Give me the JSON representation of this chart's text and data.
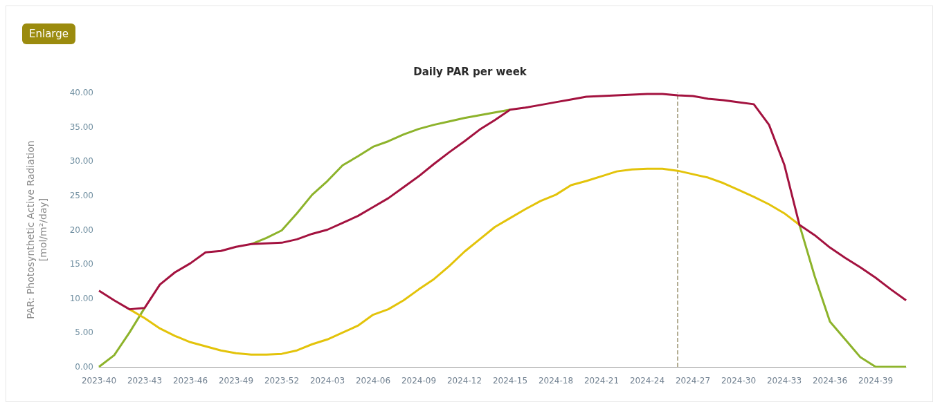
{
  "chart_data": {
    "type": "line",
    "title": "Daily PAR per week",
    "ylabel": "PAR: Photosynthetic Active Radiation\n[mol/m²/day]",
    "annotations": [
      "Enlarge"
    ],
    "categories": [
      "2023-40",
      null,
      null,
      "2023-43",
      null,
      null,
      "2023-46",
      null,
      null,
      "2023-49",
      null,
      null,
      "2023-52",
      null,
      null,
      "2024-03",
      null,
      null,
      "2024-06",
      null,
      null,
      "2024-09",
      null,
      null,
      "2024-12",
      null,
      null,
      "2024-15",
      null,
      null,
      "2024-18",
      null,
      null,
      "2024-21",
      null,
      null,
      "2024-24",
      null,
      null,
      "2024-27",
      null,
      null,
      "2024-30",
      null,
      null,
      "2024-33",
      null,
      null,
      "2024-36",
      null,
      null,
      "2024-39",
      null,
      null
    ],
    "series": [
      {
        "color": "#8db32b",
        "values": [
          0,
          1.7,
          5.0,
          8.6,
          null,
          null,
          null,
          null,
          null,
          null,
          17.9,
          18.8,
          19.9,
          22.4,
          25.1,
          27.1,
          29.4,
          30.7,
          32.1,
          32.9,
          33.9,
          34.7,
          35.3,
          35.8,
          36.3,
          36.7,
          37.1,
          37.5,
          null,
          null,
          null,
          null,
          null,
          null,
          null,
          null,
          null,
          null,
          null,
          null,
          null,
          null,
          null,
          null,
          null,
          null,
          20.7,
          13.2,
          6.6,
          4.0,
          1.4,
          0,
          0,
          0
        ]
      },
      {
        "color": "#e3c30a",
        "values": [
          null,
          null,
          8.4,
          7.1,
          5.6,
          4.5,
          3.6,
          3.0,
          2.4,
          2.0,
          1.8,
          1.8,
          1.9,
          2.4,
          3.3,
          4.0,
          5.0,
          6.0,
          7.6,
          8.4,
          9.7,
          11.3,
          12.8,
          14.7,
          16.8,
          18.6,
          20.4,
          21.7,
          23.0,
          24.2,
          25.1,
          26.5,
          27.1,
          27.8,
          28.5,
          28.8,
          28.9,
          28.9,
          28.6,
          28.1,
          27.6,
          26.8,
          25.8,
          24.8,
          23.7,
          22.4,
          20.7,
          null,
          null,
          null,
          null,
          null,
          null,
          null
        ]
      },
      {
        "color": "#a3123f",
        "values": [
          11.1,
          9.7,
          8.4,
          8.6,
          12.0,
          13.8,
          15.1,
          16.7,
          16.9,
          17.5,
          17.9,
          18.0,
          18.1,
          18.6,
          19.4,
          20.0,
          21.0,
          22.0,
          23.3,
          24.6,
          26.2,
          27.8,
          29.6,
          31.3,
          32.9,
          34.6,
          36.0,
          37.5,
          37.8,
          38.2,
          38.6,
          39.0,
          39.4,
          39.5,
          39.6,
          39.7,
          39.8,
          39.8,
          39.6,
          39.5,
          39.1,
          38.9,
          38.6,
          38.3,
          35.3,
          29.5,
          20.7,
          19.2,
          17.4,
          15.9,
          14.5,
          13.0,
          11.3,
          9.7
        ]
      }
    ],
    "ylim": [
      0,
      40
    ],
    "yticks": [
      {
        "value": 0,
        "label": "0.00"
      },
      {
        "value": 5,
        "label": "5.00"
      },
      {
        "value": 10,
        "label": "10.00"
      },
      {
        "value": 15,
        "label": "15.00"
      },
      {
        "value": 20,
        "label": "20.00"
      },
      {
        "value": 25,
        "label": "25.00"
      },
      {
        "value": 30,
        "label": "30.00"
      },
      {
        "value": 35,
        "label": "35.00"
      },
      {
        "value": 40,
        "label": "40.00"
      }
    ]
  }
}
